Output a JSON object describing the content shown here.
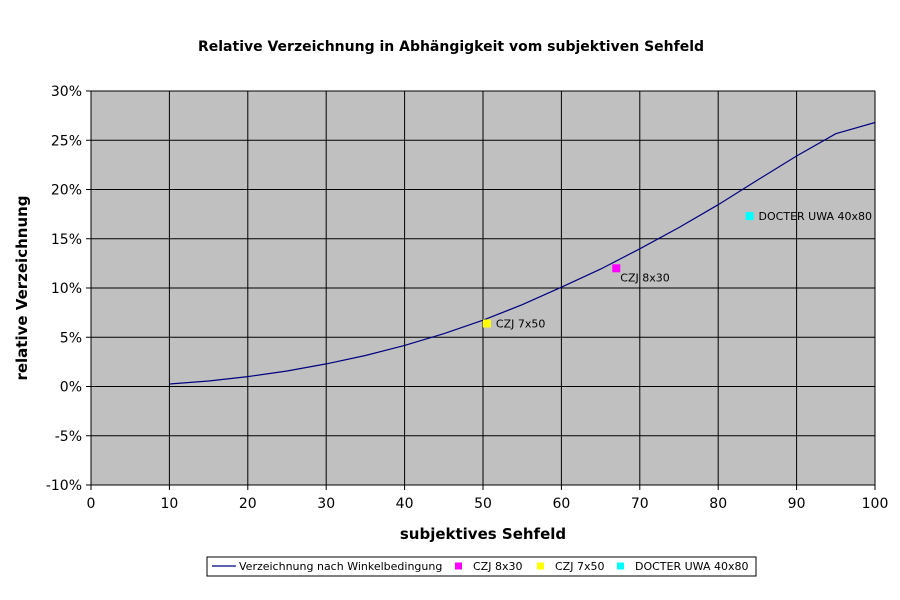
{
  "chart_data": {
    "type": "line",
    "title": "Relative Verzeichnung in Abhängigkeit vom subjektiven Sehfeld",
    "xlabel": "subjektives Sehfeld",
    "ylabel": "relative Verzeichnung",
    "xlim": [
      0,
      100
    ],
    "ylim": [
      -10,
      30
    ],
    "x_ticks": [
      0,
      10,
      20,
      30,
      40,
      50,
      60,
      70,
      80,
      90,
      100
    ],
    "y_ticks": [
      -10,
      -5,
      0,
      5,
      10,
      15,
      20,
      25,
      30
    ],
    "x_tick_labels": [
      "0",
      "10",
      "20",
      "30",
      "40",
      "50",
      "60",
      "70",
      "80",
      "90",
      "100"
    ],
    "y_tick_labels": [
      "-10%",
      "-5%",
      "0%",
      "5%",
      "10%",
      "15%",
      "20%",
      "25%",
      "30%"
    ],
    "grid": true,
    "background_color": "#c0c0c0",
    "legend_position": "bottom",
    "series": [
      {
        "name": "Verzeichnung nach Winkelbedingung",
        "kind": "line",
        "color": "#000080",
        "x": [
          10,
          15,
          20,
          25,
          30,
          35,
          40,
          45,
          50,
          55,
          60,
          65,
          70,
          75,
          80,
          85,
          90,
          95,
          100
        ],
        "y": [
          0.25,
          0.56,
          1.0,
          1.57,
          2.29,
          3.15,
          4.17,
          5.36,
          6.73,
          8.3,
          10.08,
          11.92,
          13.98,
          16.14,
          18.46,
          20.95,
          23.4,
          25.66,
          26.8
        ]
      },
      {
        "name": "CZJ 8x30",
        "kind": "point",
        "color": "#ff00ff",
        "x": [
          67
        ],
        "y": [
          12.0
        ],
        "point_label": "CZJ 8x30"
      },
      {
        "name": "CZJ 7x50",
        "kind": "point",
        "color": "#ffff00",
        "x": [
          50.5
        ],
        "y": [
          6.4
        ],
        "point_label": "CZJ 7x50"
      },
      {
        "name": "DOCTER UWA 40x80",
        "kind": "point",
        "color": "#00ffff",
        "x": [
          84
        ],
        "y": [
          17.3
        ],
        "point_label": "DOCTER UWA 40x80"
      }
    ]
  }
}
